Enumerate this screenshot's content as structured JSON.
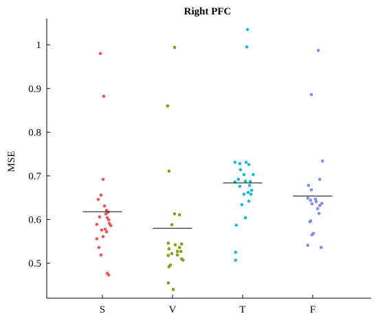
{
  "chart_data": {
    "type": "scatter",
    "title": "Right PFC",
    "xlabel": "",
    "ylabel": "MSE",
    "categories": [
      "S",
      "V",
      "T",
      "F"
    ],
    "ylim": [
      0.42,
      1.06
    ],
    "yticks": [
      0.5,
      0.6,
      0.7,
      0.8,
      0.9,
      1
    ],
    "ytick_labels": [
      "0.5",
      "0.6",
      "0.7",
      "0.8",
      "0.9",
      "1"
    ],
    "grid": false,
    "series": [
      {
        "category": "S",
        "color": "#f2545b",
        "mean": 0.618,
        "points": [
          [
            -0.03,
            0.98
          ],
          [
            0.02,
            0.882
          ],
          [
            0.01,
            0.692
          ],
          [
            -0.06,
            0.646
          ],
          [
            -0.02,
            0.656
          ],
          [
            0.03,
            0.631
          ],
          [
            0.06,
            0.621
          ],
          [
            0.08,
            0.617
          ],
          [
            0.05,
            0.613
          ],
          [
            -0.04,
            0.606
          ],
          [
            0.07,
            0.604
          ],
          [
            0.09,
            0.599
          ],
          [
            0.1,
            0.591
          ],
          [
            -0.08,
            0.589
          ],
          [
            0.12,
            0.586
          ],
          [
            0.04,
            0.578
          ],
          [
            -0.01,
            0.576
          ],
          [
            0.06,
            0.572
          ],
          [
            0.01,
            0.561
          ],
          [
            -0.08,
            0.556
          ],
          [
            -0.05,
            0.536
          ],
          [
            -0.02,
            0.519
          ],
          [
            0.07,
            0.477
          ],
          [
            0.09,
            0.473
          ]
        ]
      },
      {
        "category": "V",
        "color": "#8a9b0f",
        "mean": 0.58,
        "points": [
          [
            0.03,
            0.994
          ],
          [
            -0.07,
            0.86
          ],
          [
            -0.05,
            0.711
          ],
          [
            0.03,
            0.613
          ],
          [
            0.1,
            0.611
          ],
          [
            -0.01,
            0.588
          ],
          [
            -0.06,
            0.546
          ],
          [
            0.13,
            0.544
          ],
          [
            0.04,
            0.542
          ],
          [
            0.1,
            0.536
          ],
          [
            -0.05,
            0.533
          ],
          [
            0.07,
            0.527
          ],
          [
            0.12,
            0.527
          ],
          [
            -0.01,
            0.522
          ],
          [
            0.07,
            0.519
          ],
          [
            -0.06,
            0.518
          ],
          [
            0.13,
            0.51
          ],
          [
            0.15,
            0.507
          ],
          [
            -0.03,
            0.496
          ],
          [
            -0.05,
            0.492
          ],
          [
            -0.06,
            0.455
          ],
          [
            0.01,
            0.44
          ]
        ]
      },
      {
        "category": "T",
        "color": "#17becf",
        "mean": 0.684,
        "points": [
          [
            0.07,
            1.035
          ],
          [
            0.06,
            0.995
          ],
          [
            -0.11,
            0.731
          ],
          [
            0.05,
            0.731
          ],
          [
            -0.04,
            0.728
          ],
          [
            0.09,
            0.726
          ],
          [
            -0.03,
            0.714
          ],
          [
            0.02,
            0.703
          ],
          [
            0.15,
            0.703
          ],
          [
            -0.06,
            0.692
          ],
          [
            0.04,
            0.688
          ],
          [
            0.11,
            0.687
          ],
          [
            -0.11,
            0.686
          ],
          [
            0.1,
            0.678
          ],
          [
            -0.04,
            0.676
          ],
          [
            0.13,
            0.667
          ],
          [
            0.08,
            0.662
          ],
          [
            0.02,
            0.658
          ],
          [
            -0.01,
            0.634
          ],
          [
            0.09,
            0.642
          ],
          [
            0.12,
            0.658
          ],
          [
            0.04,
            0.604
          ],
          [
            -0.09,
            0.587
          ],
          [
            -0.1,
            0.525
          ],
          [
            -0.1,
            0.507
          ]
        ]
      },
      {
        "category": "F",
        "color": "#7b8fe6",
        "mean": 0.654,
        "points": [
          [
            0.08,
            0.987
          ],
          [
            -0.02,
            0.886
          ],
          [
            0.14,
            0.734
          ],
          [
            0.1,
            0.692
          ],
          [
            -0.06,
            0.678
          ],
          [
            -0.02,
            0.668
          ],
          [
            -0.07,
            0.649
          ],
          [
            0.04,
            0.647
          ],
          [
            -0.03,
            0.644
          ],
          [
            0.05,
            0.641
          ],
          [
            -0.01,
            0.636
          ],
          [
            0.13,
            0.637
          ],
          [
            0.1,
            0.632
          ],
          [
            0.07,
            0.625
          ],
          [
            0.09,
            0.614
          ],
          [
            -0.03,
            0.597
          ],
          [
            0.01,
            0.568
          ],
          [
            -0.01,
            0.565
          ],
          [
            -0.07,
            0.541
          ],
          [
            0.12,
            0.536
          ],
          [
            -0.04,
            0.595
          ]
        ]
      }
    ]
  }
}
